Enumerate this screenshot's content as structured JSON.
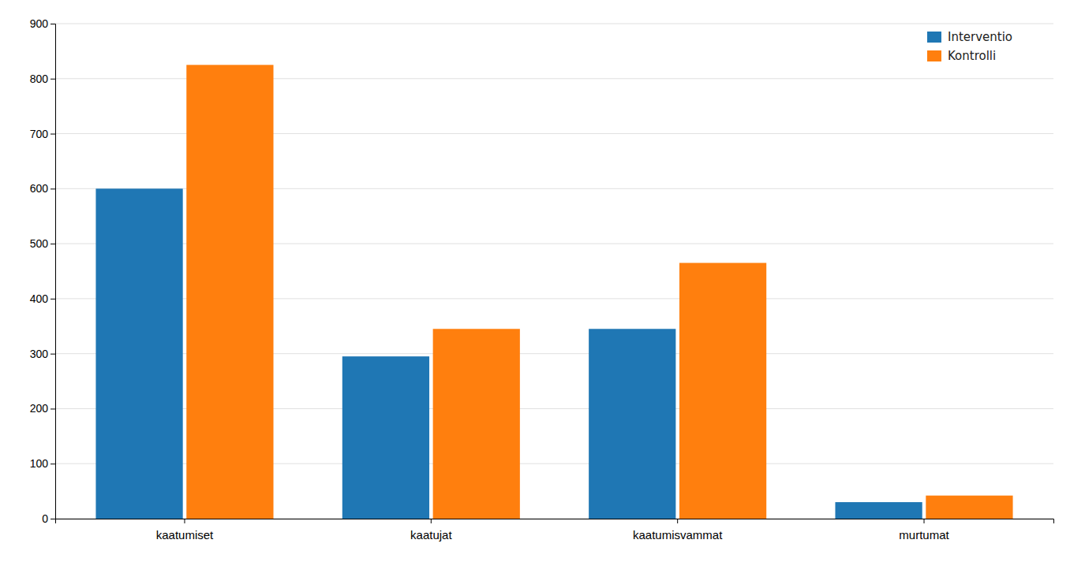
{
  "chart_data": {
    "type": "bar",
    "categories": [
      "kaatumiset",
      "kaatujat",
      "kaatumisvammat",
      "murtumat"
    ],
    "series": [
      {
        "name": "Interventio",
        "values": [
          600,
          295,
          345,
          30
        ]
      },
      {
        "name": "Kontrolli",
        "values": [
          825,
          345,
          465,
          42
        ]
      }
    ],
    "ylim": [
      0,
      900
    ],
    "yticks": [
      0,
      100,
      200,
      300,
      400,
      500,
      600,
      700,
      800,
      900
    ],
    "grid": true,
    "legend": "upper right"
  }
}
